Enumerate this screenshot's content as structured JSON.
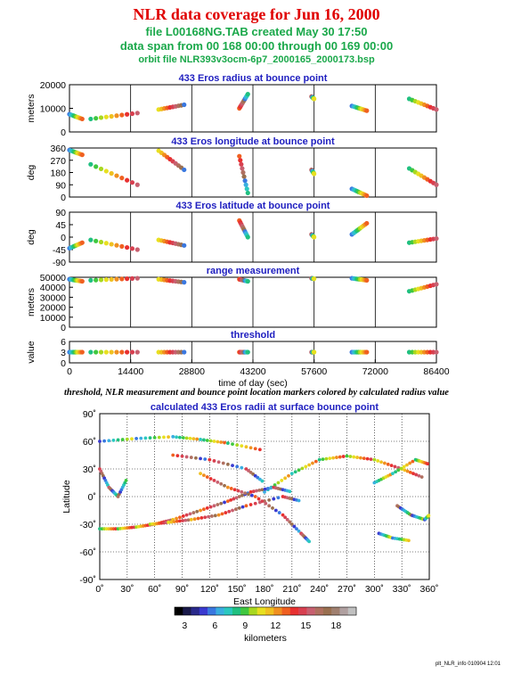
{
  "header": {
    "title": "NLR data coverage for Jun 16, 2000",
    "file_line": "file L00168NG.TAB created May 30 17:50",
    "span_line": "data span from 00 168 00:00 through 00 169 00:00",
    "orbit_line": "orbit file NLR393v3ocm-6p7_2000165_2000173.bsp"
  },
  "caption": "threshold, NLR measurement and bounce point location markers colored by calculated radius value",
  "footer": "plt_NLR_info 010904 12:01",
  "colorbar": {
    "ticks": [
      "3",
      "6",
      "9",
      "12",
      "15",
      "18"
    ],
    "label": "kilometers",
    "colors": [
      "#000000",
      "#1a1a4a",
      "#2a2a8c",
      "#3a3ad0",
      "#3a78e0",
      "#3aaee0",
      "#2ac8c0",
      "#20c080",
      "#40c840",
      "#a8d820",
      "#e8e020",
      "#f0c020",
      "#f09020",
      "#f06020",
      "#e83030",
      "#d84050",
      "#c86070",
      "#b07060",
      "#9a7050",
      "#a08070",
      "#b0a0a0",
      "#c0c0c0"
    ]
  },
  "chart_data": [
    {
      "type": "scatter",
      "title": "433 Eros radius at bounce point",
      "ylabel": "meters",
      "ylim": [
        0,
        20000
      ],
      "yticks": [
        "0",
        "10000",
        "20000"
      ],
      "segments": [
        {
          "x": [
            0,
            3000
          ],
          "y": [
            7500,
            5500
          ]
        },
        {
          "x": [
            5000,
            16000
          ],
          "y": [
            5500,
            8000
          ]
        },
        {
          "x": [
            21000,
            27000
          ],
          "y": [
            9500,
            11500
          ]
        },
        {
          "x": [
            40000,
            42000
          ],
          "y": [
            10000,
            16000
          ]
        },
        {
          "x": [
            57000,
            57600
          ],
          "y": [
            15000,
            14000
          ]
        },
        {
          "x": [
            66500,
            70000
          ],
          "y": [
            11000,
            9000
          ]
        },
        {
          "x": [
            80000,
            86400
          ],
          "y": [
            14000,
            9500
          ]
        }
      ]
    },
    {
      "type": "scatter",
      "title": "433 Eros longitude at bounce point",
      "ylabel": "deg",
      "ylim": [
        0,
        360
      ],
      "yticks": [
        "0",
        "90",
        "180",
        "270",
        "360"
      ],
      "segments": [
        {
          "x": [
            0,
            3000
          ],
          "y": [
            345,
            310
          ]
        },
        {
          "x": [
            5000,
            16000
          ],
          "y": [
            240,
            90
          ]
        },
        {
          "x": [
            21000,
            27000
          ],
          "y": [
            340,
            200
          ]
        },
        {
          "x": [
            40000,
            42000
          ],
          "y": [
            300,
            30
          ]
        },
        {
          "x": [
            57000,
            57600
          ],
          "y": [
            200,
            170
          ]
        },
        {
          "x": [
            66500,
            70000
          ],
          "y": [
            60,
            10
          ]
        },
        {
          "x": [
            80000,
            86400
          ],
          "y": [
            210,
            90
          ]
        }
      ]
    },
    {
      "type": "scatter",
      "title": "433 Eros latitude at bounce point",
      "ylabel": "deg",
      "ylim": [
        -90,
        90
      ],
      "yticks": [
        "-90",
        "-45",
        "0",
        "45",
        "90"
      ],
      "segments": [
        {
          "x": [
            0,
            3000
          ],
          "y": [
            -40,
            -20
          ]
        },
        {
          "x": [
            5000,
            16000
          ],
          "y": [
            -10,
            -45
          ]
        },
        {
          "x": [
            21000,
            27000
          ],
          "y": [
            -10,
            -30
          ]
        },
        {
          "x": [
            40000,
            42000
          ],
          "y": [
            60,
            0
          ]
        },
        {
          "x": [
            57000,
            57600
          ],
          "y": [
            10,
            0
          ]
        },
        {
          "x": [
            66500,
            70000
          ],
          "y": [
            10,
            50
          ]
        },
        {
          "x": [
            80000,
            86400
          ],
          "y": [
            -20,
            -5
          ]
        }
      ]
    },
    {
      "type": "scatter",
      "title": "range measurement",
      "ylabel": "meters",
      "ylim": [
        0,
        50000
      ],
      "yticks": [
        "0",
        "10000",
        "20000",
        "30000",
        "40000",
        "50000"
      ],
      "segments": [
        {
          "x": [
            0,
            3000
          ],
          "y": [
            48000,
            46000
          ]
        },
        {
          "x": [
            5000,
            16000
          ],
          "y": [
            47000,
            49000
          ]
        },
        {
          "x": [
            21000,
            27000
          ],
          "y": [
            48000,
            45000
          ]
        },
        {
          "x": [
            40000,
            42000
          ],
          "y": [
            48000,
            46000
          ]
        },
        {
          "x": [
            57000,
            57600
          ],
          "y": [
            49000,
            48500
          ]
        },
        {
          "x": [
            66500,
            70000
          ],
          "y": [
            49000,
            47000
          ]
        },
        {
          "x": [
            80000,
            86400
          ],
          "y": [
            36000,
            43000
          ]
        }
      ]
    },
    {
      "type": "scatter",
      "title": "threshold",
      "ylabel": "value",
      "ylim": [
        0,
        6
      ],
      "yticks": [
        "0",
        "3",
        "6"
      ],
      "xlabel": "time of day (sec)",
      "xlim": [
        0,
        86400
      ],
      "xticks": [
        "0",
        "14400",
        "28800",
        "43200",
        "57600",
        "72000",
        "86400"
      ],
      "segments": [
        {
          "x": [
            0,
            3000
          ],
          "y": [
            3,
            3
          ]
        },
        {
          "x": [
            5000,
            16000
          ],
          "y": [
            3,
            3
          ]
        },
        {
          "x": [
            21000,
            27000
          ],
          "y": [
            3,
            3
          ]
        },
        {
          "x": [
            40000,
            42000
          ],
          "y": [
            3,
            3
          ]
        },
        {
          "x": [
            57000,
            57600
          ],
          "y": [
            3,
            3
          ]
        },
        {
          "x": [
            66500,
            70000
          ],
          "y": [
            3,
            3
          ]
        },
        {
          "x": [
            80000,
            86400
          ],
          "y": [
            3,
            3
          ]
        }
      ]
    },
    {
      "type": "scatter",
      "title": "calculated 433 Eros radii at surface bounce point",
      "xlabel": "East Longitude",
      "ylabel": "Latitude",
      "xlim": [
        0,
        360
      ],
      "ylim": [
        -90,
        90
      ],
      "xticks": [
        "0˚",
        "30˚",
        "60˚",
        "90˚",
        "120˚",
        "150˚",
        "180˚",
        "210˚",
        "240˚",
        "270˚",
        "300˚",
        "330˚",
        "360˚"
      ],
      "yticks": [
        "-90˚",
        "-60˚",
        "-30˚",
        "0˚",
        "30˚",
        "60˚",
        "90˚"
      ],
      "tracks": [
        {
          "lon": [
            0,
            40,
            80,
            110,
            140,
            180
          ],
          "lat": [
            60,
            63,
            65,
            62,
            58,
            50
          ]
        },
        {
          "lon": [
            180,
            210,
            240,
            270,
            300,
            330,
            355
          ],
          "lat": [
            5,
            25,
            40,
            44,
            40,
            30,
            20
          ]
        },
        {
          "lon": [
            0,
            20,
            40,
            60,
            80,
            110,
            140,
            165,
            190,
            210
          ],
          "lat": [
            -35,
            -35,
            -33,
            -30,
            -25,
            -15,
            -5,
            5,
            10,
            5
          ]
        },
        {
          "lon": [
            55,
            75,
            100,
            130,
            160,
            200,
            220
          ],
          "lat": [
            -30,
            -28,
            -25,
            -20,
            -10,
            0,
            -5
          ]
        },
        {
          "lon": [
            110,
            140,
            170,
            200,
            220,
            230
          ],
          "lat": [
            25,
            10,
            0,
            -20,
            -40,
            -50
          ]
        },
        {
          "lon": [
            80,
            120,
            160,
            180
          ],
          "lat": [
            45,
            40,
            30,
            15
          ]
        },
        {
          "lon": [
            0,
            10,
            20,
            30
          ],
          "lat": [
            30,
            10,
            0,
            20
          ]
        },
        {
          "lon": [
            325,
            340,
            355,
            360
          ],
          "lat": [
            -10,
            -20,
            -25,
            -20
          ]
        },
        {
          "lon": [
            305,
            320,
            340
          ],
          "lat": [
            -40,
            -45,
            -48
          ]
        },
        {
          "lon": [
            300,
            320,
            345,
            360
          ],
          "lat": [
            15,
            25,
            40,
            35
          ]
        }
      ]
    }
  ]
}
